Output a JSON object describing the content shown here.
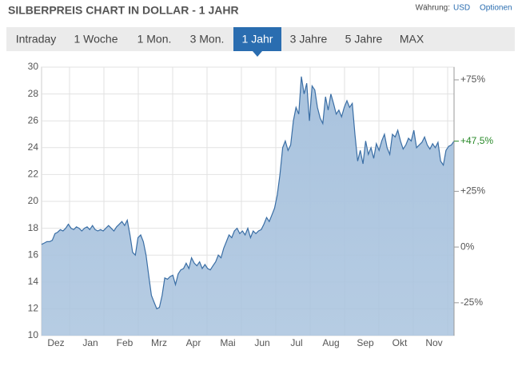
{
  "header": {
    "title": "SILBERPREIS CHART IN DOLLAR - 1 JAHR",
    "currency_label": "Währung:",
    "currency": "USD",
    "options": "Optionen"
  },
  "tabs": {
    "items": [
      "Intraday",
      "1 Woche",
      "1 Mon.",
      "3 Mon.",
      "1 Jahr",
      "3 Jahre",
      "5 Jahre",
      "MAX"
    ],
    "active": 4
  },
  "chart_data": {
    "type": "area",
    "x_labels": [
      "Dez",
      "Jan",
      "Feb",
      "Mrz",
      "Apr",
      "Mai",
      "Jun",
      "Jul",
      "Aug",
      "Sep",
      "Okt",
      "Nov"
    ],
    "values": [
      16.8,
      16.9,
      17.0,
      17.0,
      17.1,
      17.6,
      17.7,
      17.9,
      17.8,
      18.0,
      18.3,
      18.0,
      17.9,
      18.1,
      18.0,
      17.8,
      18.0,
      18.1,
      17.9,
      18.2,
      17.9,
      17.8,
      17.9,
      17.8,
      18.0,
      18.2,
      18.0,
      17.8,
      18.1,
      18.3,
      18.5,
      18.2,
      18.6,
      17.5,
      16.2,
      16.0,
      17.3,
      17.5,
      17.0,
      16.0,
      14.5,
      13.0,
      12.5,
      12.0,
      12.1,
      13.0,
      14.3,
      14.2,
      14.4,
      14.5,
      13.8,
      14.6,
      14.9,
      15.0,
      15.4,
      15.0,
      15.8,
      15.4,
      15.2,
      15.5,
      15.0,
      15.3,
      15.0,
      14.9,
      15.2,
      15.5,
      16.0,
      15.8,
      16.5,
      17.0,
      17.5,
      17.3,
      17.8,
      18.0,
      17.6,
      17.8,
      17.5,
      18.0,
      17.3,
      17.8,
      17.6,
      17.8,
      17.9,
      18.3,
      18.8,
      18.5,
      19.0,
      19.5,
      20.5,
      22.0,
      24.0,
      24.5,
      23.8,
      24.2,
      26.0,
      27.0,
      26.5,
      29.3,
      28.0,
      28.8,
      26.0,
      28.6,
      28.3,
      27.0,
      26.2,
      25.8,
      27.8,
      26.8,
      28.0,
      27.3,
      26.5,
      26.8,
      26.3,
      27.0,
      27.5,
      27.0,
      27.3,
      25.0,
      23.0,
      23.8,
      22.8,
      24.5,
      23.5,
      24.0,
      23.2,
      24.3,
      23.8,
      24.5,
      25.0,
      24.0,
      23.5,
      25.0,
      24.8,
      25.3,
      24.5,
      23.9,
      24.2,
      24.7,
      24.5,
      25.3,
      24.0,
      24.2,
      24.4,
      24.8,
      24.2,
      23.9,
      24.3,
      24.0,
      24.4,
      23.0,
      22.7,
      23.8,
      24.1,
      24.2,
      24.5
    ],
    "color": "#3a6ea5",
    "fill": "#a9c3de",
    "ylim": [
      10,
      30
    ],
    "yticks": [
      10,
      12,
      14,
      16,
      18,
      20,
      22,
      24,
      26,
      28,
      30
    ],
    "y2lim": [
      -39.76,
      80.72
    ],
    "y2ticks": [
      {
        "value": 75,
        "label": "+75%"
      },
      {
        "value": 25,
        "label": "+25%"
      },
      {
        "value": 0,
        "label": "0%"
      },
      {
        "value": -25,
        "label": "-25%"
      }
    ],
    "current": {
      "value": 47.5,
      "label": "+47,5%",
      "color": "#2a8a2a"
    },
    "grid": true
  }
}
